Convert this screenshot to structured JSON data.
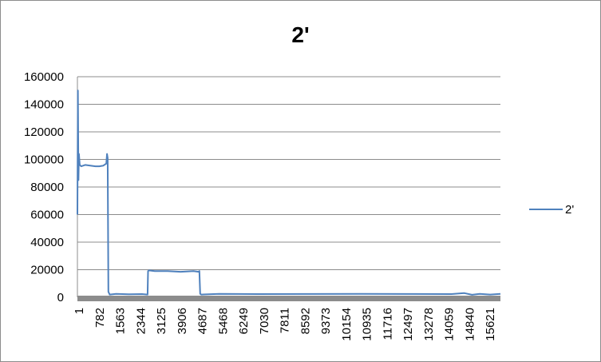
{
  "chart_data": {
    "type": "line",
    "title": "2'",
    "xlabel": "",
    "ylabel": "",
    "ylim": [
      0,
      160000
    ],
    "yticks": [
      "0",
      "20000",
      "40000",
      "60000",
      "80000",
      "100000",
      "120000",
      "140000",
      "160000"
    ],
    "xticks": [
      "1",
      "782",
      "1563",
      "2344",
      "3125",
      "3906",
      "4687",
      "5468",
      "6249",
      "7030",
      "7811",
      "8592",
      "9373",
      "10154",
      "10935",
      "11716",
      "12497",
      "13278",
      "14059",
      "14840",
      "15621"
    ],
    "xlim": [
      1,
      16400
    ],
    "grid": true,
    "legend": "right",
    "series": [
      {
        "name": "2'",
        "color": "#4f81bd",
        "x": [
          1,
          20,
          40,
          60,
          90,
          150,
          300,
          500,
          700,
          850,
          1000,
          1120,
          1150,
          1175,
          1200,
          1250,
          1500,
          2000,
          2500,
          2720,
          2740,
          2780,
          3000,
          3500,
          4000,
          4500,
          4700,
          4730,
          4760,
          4800,
          5500,
          7000,
          9000,
          11000,
          13000,
          14500,
          15000,
          15300,
          15600,
          16000,
          16400
        ],
        "y": [
          60000,
          150000,
          85000,
          104000,
          96000,
          95000,
          96000,
          95500,
          95000,
          95000,
          95500,
          97000,
          104000,
          101000,
          4000,
          2000,
          2500,
          2200,
          2300,
          2000,
          19000,
          19500,
          19000,
          19000,
          18500,
          19000,
          18500,
          19000,
          2500,
          2000,
          2500,
          2300,
          2400,
          2500,
          2400,
          2300,
          3000,
          1800,
          2500,
          2000,
          2500
        ]
      }
    ]
  }
}
